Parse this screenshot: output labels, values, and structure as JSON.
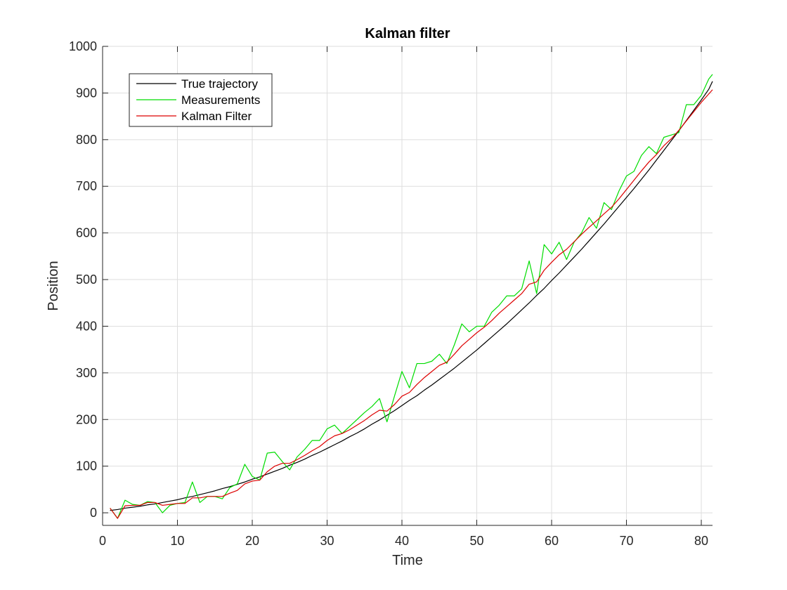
{
  "chart_data": {
    "type": "line",
    "title": "Kalman filter",
    "xlabel": "Time",
    "ylabel": "Position",
    "xlim": [
      0,
      81.5
    ],
    "ylim": [
      -27,
      1000
    ],
    "xticks": [
      0,
      10,
      20,
      30,
      40,
      50,
      60,
      70,
      80
    ],
    "yticks": [
      0,
      100,
      200,
      300,
      400,
      500,
      600,
      700,
      800,
      900,
      1000
    ],
    "grid": true,
    "legend_position": "top-left",
    "series": [
      {
        "name": "True trajectory",
        "color": "#000000",
        "x": [
          1,
          2,
          3,
          4,
          5,
          6,
          7,
          8,
          9,
          10,
          11,
          12,
          13,
          14,
          15,
          16,
          17,
          18,
          19,
          20,
          21,
          22,
          23,
          24,
          25,
          26,
          27,
          28,
          29,
          30,
          31,
          32,
          33,
          34,
          35,
          36,
          37,
          38,
          39,
          40,
          41,
          42,
          43,
          44,
          45,
          46,
          47,
          48,
          49,
          50,
          51,
          52,
          53,
          54,
          55,
          56,
          57,
          58,
          59,
          60,
          61,
          62,
          63,
          64,
          65,
          66,
          67,
          68,
          69,
          70,
          71,
          72,
          73,
          74,
          75,
          76,
          77,
          78,
          79,
          80,
          81,
          81.5
        ],
        "y": [
          5,
          7,
          10,
          12,
          14,
          17,
          19,
          22,
          25,
          28,
          32,
          35,
          39,
          43,
          47,
          52,
          56,
          61,
          66,
          72,
          77,
          83,
          89,
          95,
          102,
          108,
          115,
          123,
          130,
          138,
          146,
          154,
          163,
          171,
          180,
          190,
          199,
          209,
          219,
          230,
          241,
          251,
          263,
          274,
          286,
          298,
          310,
          323,
          336,
          349,
          363,
          377,
          391,
          405,
          420,
          435,
          450,
          466,
          481,
          498,
          514,
          531,
          548,
          565,
          583,
          601,
          619,
          638,
          657,
          676,
          695,
          715,
          735,
          756,
          777,
          798,
          819,
          841,
          863,
          885,
          908,
          925
        ]
      },
      {
        "name": "Measurements",
        "color": "#00dd00",
        "x": [
          1,
          2,
          3,
          4,
          5,
          6,
          7,
          8,
          9,
          10,
          11,
          12,
          13,
          14,
          15,
          16,
          17,
          18,
          19,
          20,
          21,
          22,
          23,
          24,
          25,
          26,
          27,
          28,
          29,
          30,
          31,
          32,
          33,
          34,
          35,
          36,
          37,
          38,
          39,
          40,
          41,
          42,
          43,
          44,
          45,
          46,
          47,
          48,
          49,
          50,
          51,
          52,
          53,
          54,
          55,
          56,
          57,
          58,
          59,
          60,
          61,
          62,
          63,
          64,
          65,
          66,
          67,
          68,
          69,
          70,
          71,
          72,
          73,
          74,
          75,
          76,
          77,
          78,
          79,
          80,
          81,
          81.5
        ],
        "y": [
          10,
          -12,
          27,
          18,
          16,
          24,
          22,
          0,
          16,
          20,
          22,
          66,
          22,
          35,
          35,
          30,
          54,
          62,
          104,
          78,
          70,
          128,
          130,
          110,
          92,
          120,
          136,
          155,
          155,
          180,
          188,
          170,
          185,
          200,
          215,
          228,
          245,
          195,
          250,
          303,
          268,
          320,
          320,
          325,
          340,
          320,
          360,
          405,
          388,
          400,
          400,
          430,
          445,
          465,
          465,
          480,
          540,
          470,
          575,
          555,
          580,
          543,
          580,
          600,
          633,
          610,
          665,
          650,
          690,
          722,
          732,
          766,
          785,
          770,
          805,
          810,
          815,
          875,
          875,
          895,
          930,
          940
        ]
      },
      {
        "name": "Kalman Filter",
        "color": "#dd0000",
        "x": [
          1,
          2,
          3,
          4,
          5,
          6,
          7,
          8,
          9,
          10,
          11,
          12,
          13,
          14,
          15,
          16,
          17,
          18,
          19,
          20,
          21,
          22,
          23,
          24,
          25,
          26,
          27,
          28,
          29,
          30,
          31,
          32,
          33,
          34,
          35,
          36,
          37,
          38,
          39,
          40,
          41,
          42,
          43,
          44,
          45,
          46,
          47,
          48,
          49,
          50,
          51,
          52,
          53,
          54,
          55,
          56,
          57,
          58,
          59,
          60,
          61,
          62,
          63,
          64,
          65,
          66,
          67,
          68,
          69,
          70,
          71,
          72,
          73,
          74,
          75,
          76,
          77,
          78,
          79,
          80,
          81,
          81.5
        ],
        "y": [
          10,
          -12,
          15,
          16,
          16,
          22,
          22,
          16,
          18,
          20,
          20,
          32,
          32,
          35,
          35,
          35,
          42,
          48,
          62,
          68,
          70,
          88,
          100,
          106,
          106,
          114,
          123,
          133,
          142,
          155,
          165,
          170,
          178,
          188,
          198,
          210,
          220,
          218,
          232,
          250,
          258,
          275,
          290,
          303,
          316,
          323,
          340,
          358,
          372,
          386,
          398,
          412,
          428,
          442,
          456,
          470,
          490,
          495,
          520,
          537,
          553,
          565,
          581,
          597,
          612,
          626,
          641,
          655,
          673,
          693,
          713,
          733,
          752,
          768,
          787,
          802,
          820,
          840,
          860,
          880,
          898,
          907
        ]
      }
    ]
  }
}
